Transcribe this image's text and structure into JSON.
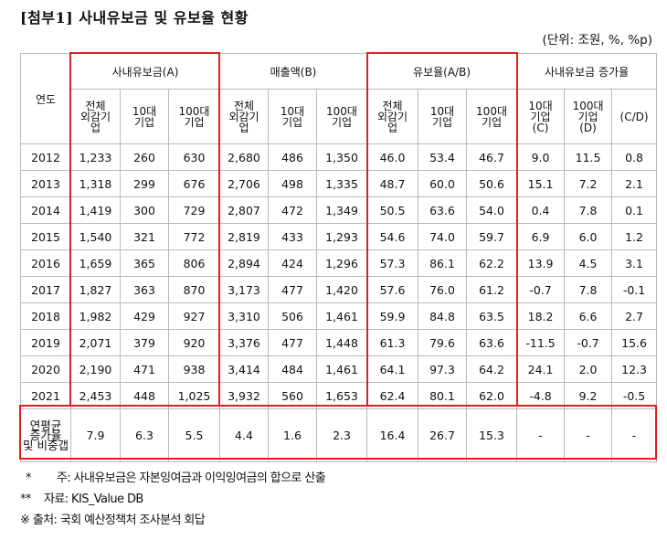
{
  "title": "[첨부1] 사내유보금 및 유보율 현황",
  "unit": "(단위: 조원, %, %p)",
  "header": {
    "year": "연도",
    "groups": [
      "사내유보금(A)",
      "매출액(B)",
      "유보율(A/B)",
      "사내유보금 증가율"
    ],
    "sub": [
      [
        "전체",
        "외감기",
        "업"
      ],
      [
        "10대",
        "기업"
      ],
      [
        "100대",
        "기업"
      ],
      [
        "전체",
        "외감기",
        "업"
      ],
      [
        "10대",
        "기업"
      ],
      [
        "100대",
        "기업"
      ],
      [
        "전체",
        "외감기",
        "업"
      ],
      [
        "10대",
        "기업"
      ],
      [
        "100대",
        "기업"
      ],
      [
        "10대",
        "기업",
        "(C)"
      ],
      [
        "100대",
        "기업",
        "(D)"
      ],
      [
        "(C/D)"
      ]
    ]
  },
  "rows": [
    {
      "year": "2012",
      "v": [
        "1,233",
        "260",
        "630",
        "2,680",
        "486",
        "1,350",
        "46.0",
        "53.4",
        "46.7",
        "9.0",
        "11.5",
        "0.8"
      ]
    },
    {
      "year": "2013",
      "v": [
        "1,318",
        "299",
        "676",
        "2,706",
        "498",
        "1,335",
        "48.7",
        "60.0",
        "50.6",
        "15.1",
        "7.2",
        "2.1"
      ]
    },
    {
      "year": "2014",
      "v": [
        "1,419",
        "300",
        "729",
        "2,807",
        "472",
        "1,349",
        "50.5",
        "63.6",
        "54.0",
        "0.4",
        "7.8",
        "0.1"
      ]
    },
    {
      "year": "2015",
      "v": [
        "1,540",
        "321",
        "772",
        "2,819",
        "433",
        "1,293",
        "54.6",
        "74.0",
        "59.7",
        "6.9",
        "6.0",
        "1.2"
      ]
    },
    {
      "year": "2016",
      "v": [
        "1,659",
        "365",
        "806",
        "2,894",
        "424",
        "1,296",
        "57.3",
        "86.1",
        "62.2",
        "13.9",
        "4.5",
        "3.1"
      ]
    },
    {
      "year": "2017",
      "v": [
        "1,827",
        "363",
        "870",
        "3,173",
        "477",
        "1,420",
        "57.6",
        "76.0",
        "61.2",
        "-0.7",
        "7.8",
        "-0.1"
      ]
    },
    {
      "year": "2018",
      "v": [
        "1,982",
        "429",
        "927",
        "3,310",
        "506",
        "1,461",
        "59.9",
        "84.8",
        "63.5",
        "18.2",
        "6.6",
        "2.7"
      ]
    },
    {
      "year": "2019",
      "v": [
        "2,071",
        "379",
        "920",
        "3,376",
        "477",
        "1,448",
        "61.3",
        "79.6",
        "63.6",
        "-11.5",
        "-0.7",
        "15.6"
      ]
    },
    {
      "year": "2020",
      "v": [
        "2,190",
        "471",
        "938",
        "3,414",
        "484",
        "1,461",
        "64.1",
        "97.3",
        "64.2",
        "24.1",
        "2.0",
        "12.3"
      ]
    },
    {
      "year": "2021",
      "v": [
        "2,453",
        "448",
        "1,025",
        "3,932",
        "560",
        "1,653",
        "62.4",
        "80.1",
        "62.0",
        "-4.8",
        "9.2",
        "-0.5"
      ]
    }
  ],
  "cagr": {
    "label": [
      "연평균",
      "증가율",
      "및 비중갭"
    ],
    "v": [
      "7.9",
      "6.3",
      "5.5",
      "4.4",
      "1.6",
      "2.3",
      "16.4",
      "26.7",
      "15.3",
      "-",
      "-",
      "-"
    ]
  },
  "notes": {
    "n1_mark": "*",
    "n1_text": "주: 사내유보금은 자본잉여금과 이익잉여금의 합으로 산출",
    "n2_mark": "**",
    "n2_text": "자료: KIS_Value DB",
    "n3_text": "※ 출처: 국회 예산정책처 조사분석 회답"
  },
  "colors": {
    "highlight": "#e02020",
    "grid": "#b9b9b9"
  }
}
